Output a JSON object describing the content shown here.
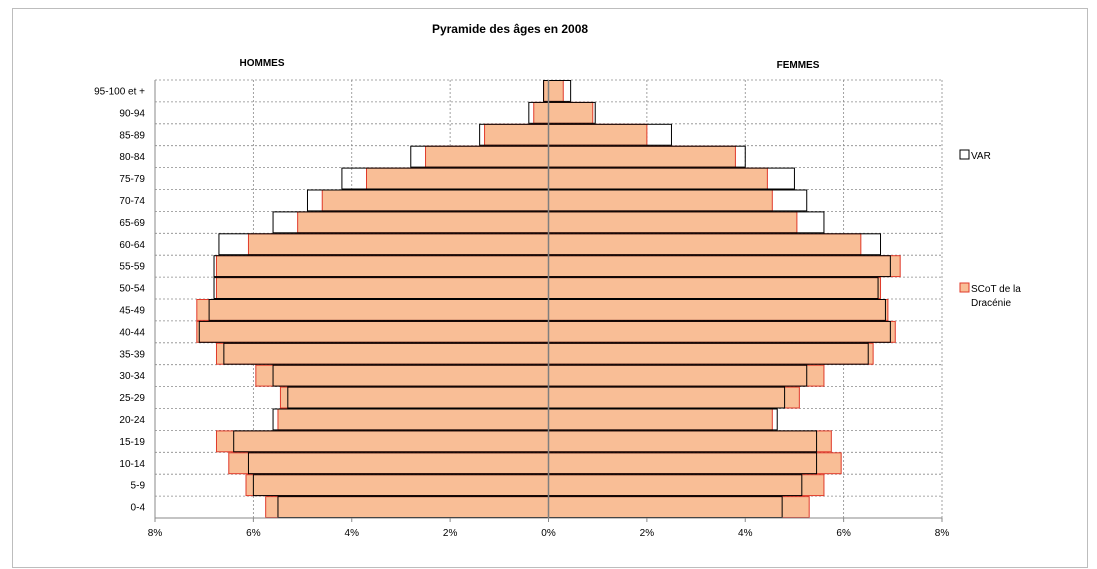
{
  "chart_data": {
    "type": "bar",
    "title": "Pyramide des âges en 2008",
    "left_label": "HOMMES",
    "right_label": "FEMMES",
    "categories": [
      "95-100 et +",
      "90-94",
      "85-89",
      "80-84",
      "75-79",
      "70-74",
      "65-69",
      "60-64",
      "55-59",
      "50-54",
      "45-49",
      "40-44",
      "35-39",
      "30-34",
      "25-29",
      "20-24",
      "15-19",
      "10-14",
      "5-9",
      "0-4"
    ],
    "x_tick_labels": [
      "8%",
      "6%",
      "4%",
      "2%",
      "0%",
      "2%",
      "4%",
      "6%",
      "8%"
    ],
    "xlim": [
      -8,
      8
    ],
    "grid": true,
    "legend_position": "right",
    "series": [
      {
        "name": "VAR",
        "style": "outline",
        "color": "#000000",
        "men": [
          0.1,
          0.4,
          1.4,
          2.8,
          4.2,
          4.9,
          5.6,
          6.7,
          6.8,
          6.8,
          6.9,
          7.1,
          6.6,
          5.6,
          5.3,
          5.6,
          6.4,
          6.1,
          6.0,
          5.5
        ],
        "women": [
          0.45,
          0.95,
          2.5,
          4.0,
          5.0,
          5.25,
          5.6,
          6.75,
          6.95,
          6.7,
          6.85,
          6.95,
          6.5,
          5.25,
          4.8,
          4.65,
          5.45,
          5.45,
          5.15,
          4.75
        ]
      },
      {
        "name": "SCoT de la Dracénie",
        "legend_lines": [
          "SCoT de la",
          "Dracénie"
        ],
        "style": "filled",
        "color": "#f9be96",
        "edge_color": "#e03a2a",
        "men": [
          0.1,
          0.3,
          1.3,
          2.5,
          3.7,
          4.6,
          5.1,
          6.1,
          6.75,
          6.75,
          7.15,
          7.15,
          6.75,
          5.95,
          5.45,
          5.5,
          6.75,
          6.5,
          6.15,
          5.75
        ],
        "women": [
          0.3,
          0.9,
          2.0,
          3.8,
          4.45,
          4.55,
          5.05,
          6.35,
          7.15,
          6.75,
          6.9,
          7.05,
          6.6,
          5.6,
          5.1,
          4.55,
          5.75,
          5.95,
          5.6,
          5.3
        ]
      }
    ]
  }
}
